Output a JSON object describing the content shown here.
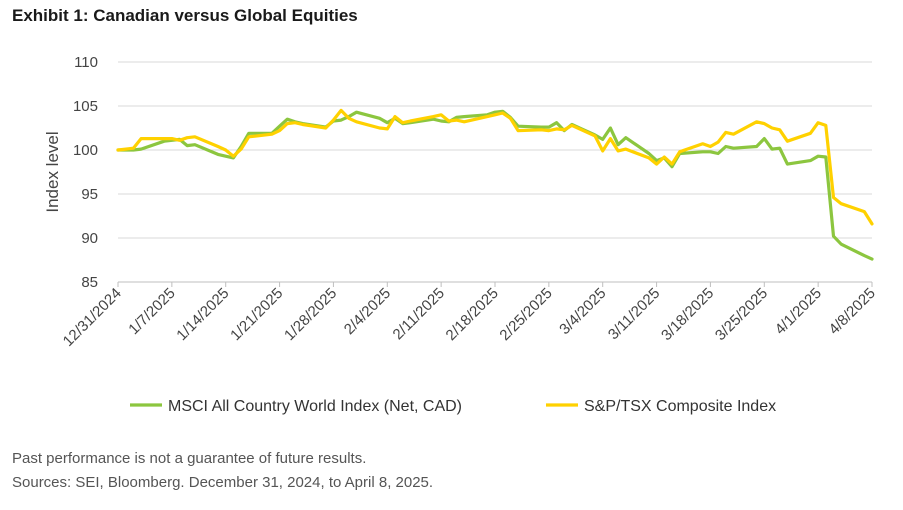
{
  "title": "Exhibit 1: Canadian versus Global Equities",
  "notes": {
    "line1": "Past performance is not a guarantee of future results.",
    "line2": "Sources: SEI, Bloomberg. December 31, 2024, to April 8, 2025."
  },
  "colors": {
    "acwi": "#8cc63f",
    "tsx": "#ffd100",
    "grid": "#d9d9d9",
    "axis": "#bfbfbf"
  },
  "chart_data": {
    "type": "line",
    "ylabel": "Index level",
    "ylim": [
      85,
      110
    ],
    "yticks": [
      85,
      90,
      95,
      100,
      105,
      110
    ],
    "xticks": [
      "12/31/2024",
      "1/7/2025",
      "1/14/2025",
      "1/21/2025",
      "1/28/2025",
      "2/4/2025",
      "2/11/2025",
      "2/18/2025",
      "2/25/2025",
      "3/4/2025",
      "3/11/2025",
      "3/18/2025",
      "3/25/2025",
      "4/1/2025",
      "4/8/2025"
    ],
    "x": [
      "12/31/2024",
      "1/2/2025",
      "1/3/2025",
      "1/6/2025",
      "1/7/2025",
      "1/8/2025",
      "1/9/2025",
      "1/10/2025",
      "1/13/2025",
      "1/14/2025",
      "1/15/2025",
      "1/16/2025",
      "1/17/2025",
      "1/20/2025",
      "1/21/2025",
      "1/22/2025",
      "1/23/2025",
      "1/24/2025",
      "1/27/2025",
      "1/28/2025",
      "1/29/2025",
      "1/30/2025",
      "1/31/2025",
      "2/3/2025",
      "2/4/2025",
      "2/5/2025",
      "2/6/2025",
      "2/7/2025",
      "2/10/2025",
      "2/11/2025",
      "2/12/2025",
      "2/13/2025",
      "2/14/2025",
      "2/17/2025",
      "2/18/2025",
      "2/19/2025",
      "2/20/2025",
      "2/21/2025",
      "2/24/2025",
      "2/25/2025",
      "2/26/2025",
      "2/27/2025",
      "2/28/2025",
      "3/3/2025",
      "3/4/2025",
      "3/5/2025",
      "3/6/2025",
      "3/7/2025",
      "3/10/2025",
      "3/11/2025",
      "3/12/2025",
      "3/13/2025",
      "3/14/2025",
      "3/17/2025",
      "3/18/2025",
      "3/19/2025",
      "3/20/2025",
      "3/21/2025",
      "3/24/2025",
      "3/25/2025",
      "3/26/2025",
      "3/27/2025",
      "3/28/2025",
      "3/31/2025",
      "4/1/2025",
      "4/2/2025",
      "4/3/2025",
      "4/4/2025",
      "4/7/2025",
      "4/8/2025"
    ],
    "series": [
      {
        "name": "MSCI All Country World Index (Net, CAD)",
        "color": "#8cc63f",
        "values": [
          100.0,
          100.0,
          100.1,
          101.0,
          101.1,
          101.2,
          100.5,
          100.6,
          99.5,
          99.3,
          99.1,
          100.4,
          101.9,
          101.9,
          102.7,
          103.5,
          103.2,
          103.0,
          102.6,
          103.3,
          103.4,
          103.8,
          104.3,
          103.6,
          103.1,
          103.6,
          103.0,
          103.1,
          103.5,
          103.3,
          103.2,
          103.7,
          103.8,
          104.0,
          104.3,
          104.4,
          103.7,
          102.7,
          102.6,
          102.6,
          103.1,
          102.2,
          102.9,
          101.7,
          101.2,
          102.5,
          100.6,
          101.4,
          99.6,
          98.8,
          99.1,
          98.1,
          99.6,
          99.8,
          99.8,
          99.6,
          100.4,
          100.2,
          100.4,
          101.3,
          100.1,
          100.2,
          98.4,
          98.8,
          99.3,
          99.2,
          90.2,
          89.3,
          88.0,
          87.6
        ]
      },
      {
        "name": "S&P/TSX Composite Index",
        "color": "#ffd100",
        "values": [
          100.0,
          100.2,
          101.3,
          101.3,
          101.3,
          101.1,
          101.4,
          101.5,
          100.4,
          100.0,
          99.3,
          100.1,
          101.5,
          101.8,
          102.2,
          103.0,
          103.1,
          102.9,
          102.5,
          103.4,
          104.5,
          103.6,
          103.2,
          102.5,
          102.4,
          103.8,
          103.1,
          103.3,
          103.8,
          104.0,
          103.3,
          103.4,
          103.2,
          103.8,
          104.0,
          104.2,
          103.6,
          102.2,
          102.3,
          102.2,
          102.4,
          102.3,
          102.8,
          101.6,
          99.9,
          101.3,
          99.9,
          100.1,
          99.1,
          98.4,
          99.2,
          98.4,
          99.8,
          100.7,
          100.4,
          100.9,
          102.0,
          101.8,
          103.2,
          103.0,
          102.5,
          102.3,
          101.0,
          101.9,
          103.1,
          102.8,
          94.6,
          93.9,
          93.0,
          91.6
        ]
      }
    ],
    "legend": {
      "placement": "bottom"
    },
    "grid": "horizontal"
  }
}
